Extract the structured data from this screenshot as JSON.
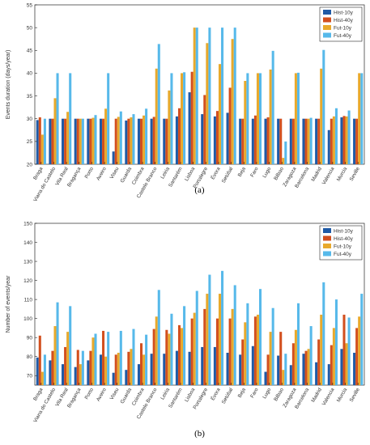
{
  "chart_data": [
    {
      "type": "bar",
      "panel_label": "(a)",
      "ylabel": "Events duration (days/year)",
      "ylim": [
        20,
        55
      ],
      "yticks": [
        20,
        25,
        30,
        35,
        40,
        45,
        50,
        55
      ],
      "grid": false,
      "legend_position": "top-right",
      "categories": [
        "Braga",
        "Viana do Castelo",
        "Vila Real",
        "Bragança",
        "Porto",
        "Aveiro",
        "Viseu",
        "Guarda",
        "Coimbra",
        "Castelo Branco",
        "Leiria",
        "Santarém",
        "Lisboa",
        "Portalegre",
        "Évora",
        "Setúbal",
        "Beja",
        "Faro",
        "Lugo",
        "Bilbao",
        "Zaragoza",
        "Barcelona",
        "Madrid",
        "Valencia",
        "Murcia",
        "Seville"
      ],
      "series": [
        {
          "name": "Hist-10y",
          "color": "#1f5aa6",
          "values": [
            29.7,
            30.0,
            30.0,
            30.0,
            30.0,
            30.0,
            22.8,
            29.6,
            30.0,
            30.0,
            30.0,
            30.5,
            35.8,
            31.0,
            30.5,
            31.3,
            30.0,
            30.0,
            30.0,
            30.0,
            30.0,
            30.0,
            30.0,
            27.5,
            30.3,
            30.0
          ]
        },
        {
          "name": "Hist-40y",
          "color": "#d24f1e",
          "values": [
            30.3,
            30.0,
            30.0,
            30.0,
            30.0,
            30.0,
            30.0,
            30.0,
            30.0,
            30.4,
            30.0,
            32.3,
            40.3,
            35.2,
            31.7,
            36.8,
            30.0,
            30.7,
            30.3,
            30.0,
            30.0,
            30.0,
            30.0,
            30.0,
            30.6,
            30.0
          ]
        },
        {
          "name": "Fut-10y",
          "color": "#e8a92c",
          "values": [
            26.5,
            34.5,
            31.5,
            30.0,
            30.2,
            32.2,
            30.4,
            30.3,
            30.7,
            41.0,
            36.2,
            40.0,
            50.0,
            46.6,
            42.0,
            47.5,
            38.3,
            40.0,
            40.8,
            21.4,
            40.0,
            30.0,
            41.0,
            30.5,
            30.5,
            40.0
          ]
        },
        {
          "name": "Fut-40y",
          "color": "#57b9ea",
          "values": [
            30.0,
            40.0,
            40.0,
            30.0,
            30.8,
            40.0,
            31.6,
            31.0,
            32.2,
            46.4,
            40.0,
            40.2,
            50.0,
            50.0,
            50.0,
            50.0,
            40.0,
            40.0,
            44.9,
            25.0,
            40.1,
            30.2,
            45.1,
            32.3,
            31.8,
            40.0
          ]
        }
      ]
    },
    {
      "type": "bar",
      "panel_label": "(b)",
      "ylabel": "Number of events/year",
      "ylim": [
        65,
        150
      ],
      "yticks": [
        70,
        80,
        90,
        100,
        110,
        120,
        130,
        140,
        150
      ],
      "grid": false,
      "legend_position": "top-right",
      "categories": [
        "Braga",
        "Viana do Castelo",
        "Vila Real",
        "Bragança",
        "Porto",
        "Aveiro",
        "Viseu",
        "Guarda",
        "Coimbra",
        "Castelo Branco",
        "Leiria",
        "Santarém",
        "Lisboa",
        "Portalegre",
        "Évora",
        "Setúbal",
        "Beja",
        "Faro",
        "Lugo",
        "Bilbao",
        "Zaragoza",
        "Barcelona",
        "Madrid",
        "Valencia",
        "Murcia",
        "Seville"
      ],
      "series": [
        {
          "name": "Hist-10y",
          "color": "#1f5aa6",
          "values": [
            79.5,
            78.0,
            76.0,
            74.5,
            78.0,
            81.0,
            71.5,
            73.0,
            76.0,
            81.5,
            81.5,
            83.0,
            82.5,
            85.0,
            85.0,
            82.0,
            81.0,
            85.5,
            72.0,
            80.5,
            75.5,
            81.5,
            77.0,
            76.0,
            84.0,
            82.0
          ]
        },
        {
          "name": "Hist-40y",
          "color": "#d24f1e",
          "values": [
            91.0,
            83.0,
            85.0,
            83.5,
            83.0,
            93.5,
            81.0,
            82.5,
            87.0,
            94.5,
            94.0,
            96.5,
            100.0,
            105.0,
            100.0,
            100.0,
            89.0,
            101.0,
            81.0,
            93.0,
            87.0,
            83.0,
            89.0,
            86.0,
            102.0,
            95.0
          ]
        },
        {
          "name": "Fut-10y",
          "color": "#e8a92c",
          "values": [
            72.0,
            96.0,
            93.0,
            76.0,
            90.0,
            80.0,
            82.0,
            84.0,
            81.0,
            101.0,
            92.0,
            95.0,
            103.0,
            113.0,
            113.0,
            105.0,
            98.0,
            102.0,
            93.0,
            73.0,
            94.0,
            84.0,
            102.0,
            95.0,
            87.0,
            101.0
          ]
        },
        {
          "name": "Fut-40y",
          "color": "#57b9ea",
          "values": [
            81.0,
            108.5,
            106.5,
            83.0,
            92.0,
            93.0,
            93.5,
            94.5,
            91.5,
            115.0,
            102.5,
            106.5,
            114.5,
            123.0,
            125.0,
            117.5,
            108.0,
            115.5,
            105.5,
            81.5,
            108.0,
            96.0,
            119.0,
            110.0,
            100.5,
            113.0
          ]
        }
      ]
    }
  ]
}
